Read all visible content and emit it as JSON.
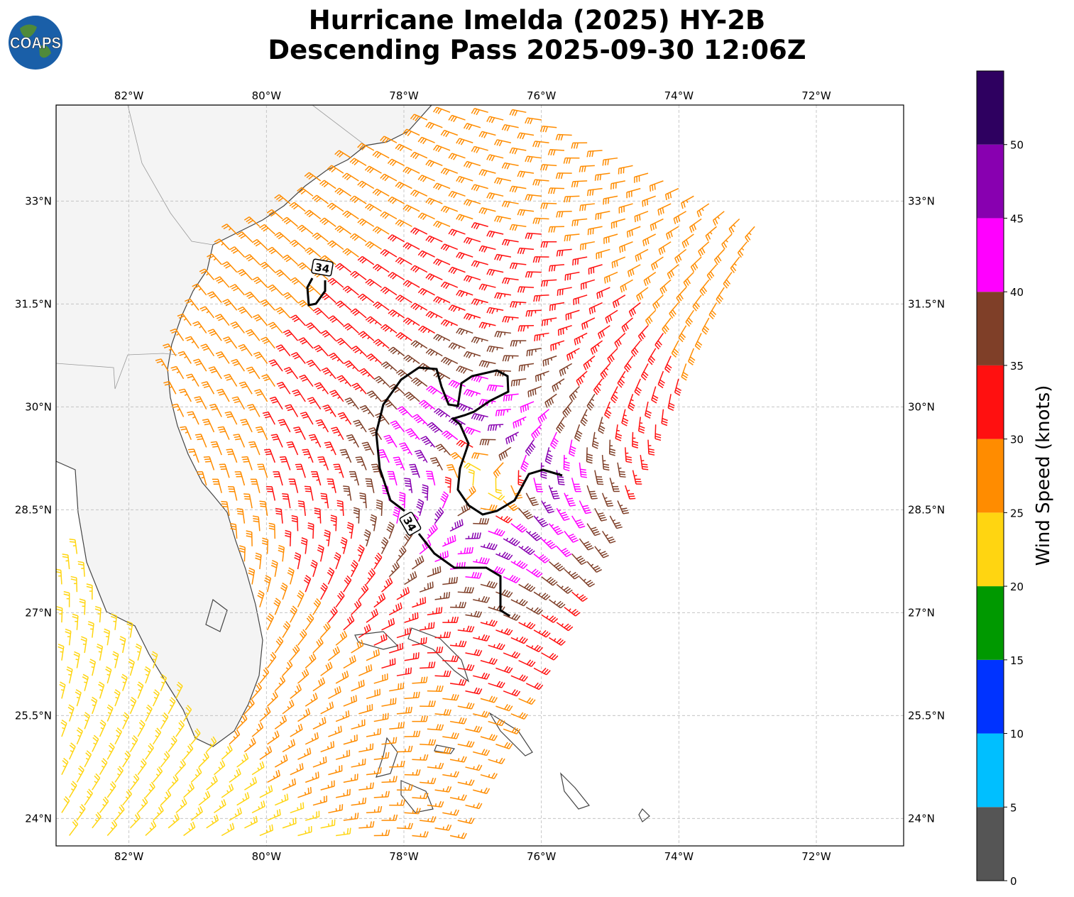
{
  "title": {
    "line1": "Hurricane Imelda (2025) HY-2B",
    "line2": "Descending Pass 2025-09-30 12:06Z"
  },
  "logo": {
    "text": "COAPS"
  },
  "map": {
    "lon_ticks": [
      "82°W",
      "80°W",
      "78°W",
      "76°W",
      "74°W",
      "72°W"
    ],
    "lon_values": [
      -82,
      -80,
      -78,
      -76,
      -74,
      -72
    ],
    "lat_ticks": [
      "33°N",
      "31.5°N",
      "30°N",
      "28.5°N",
      "27°N",
      "25.5°N",
      "24°N"
    ],
    "lat_values": [
      33,
      31.5,
      30,
      28.5,
      27,
      25.5,
      24
    ],
    "extent": {
      "lon": [
        -83.06,
        -70.73
      ],
      "lat": [
        23.6,
        34.4
      ]
    },
    "gridlines": true,
    "contour_label": "34",
    "contour_value_knots": 34
  },
  "colorbar": {
    "label": "Wind Speed (knots)",
    "ticks": [
      "0",
      "5",
      "10",
      "15",
      "20",
      "25",
      "30",
      "35",
      "40",
      "45",
      "50"
    ],
    "bins": [
      0,
      5,
      10,
      15,
      20,
      25,
      30,
      35,
      40,
      45,
      50,
      55
    ],
    "colors": [
      "#555555",
      "#00bfff",
      "#0033ff",
      "#009900",
      "#ffd511",
      "#ff8c00",
      "#ff1010",
      "#7f3f28",
      "#ff00ff",
      "#8800b0",
      "#2e0060"
    ]
  }
}
